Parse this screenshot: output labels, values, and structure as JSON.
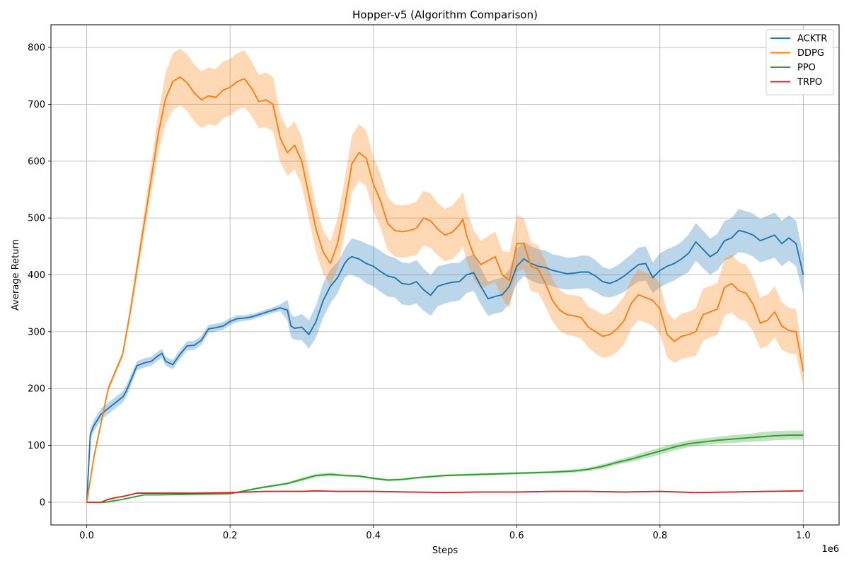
{
  "chart_data": {
    "type": "line",
    "title": "Hopper-v5 (Algorithm Comparison)",
    "xlabel": "Steps",
    "ylabel": "Average Return",
    "x_offset_label": "1e6",
    "xlim": [
      -50000,
      1050000
    ],
    "ylim": [
      -40,
      840
    ],
    "x_ticks": [
      0,
      200000,
      400000,
      600000,
      800000,
      1000000
    ],
    "x_tick_labels": [
      "0.0",
      "0.2",
      "0.4",
      "0.6",
      "0.8",
      "1.0"
    ],
    "y_ticks": [
      0,
      100,
      200,
      300,
      400,
      500,
      600,
      700,
      800
    ],
    "y_tick_labels": [
      "0",
      "100",
      "200",
      "300",
      "400",
      "500",
      "600",
      "700",
      "800"
    ],
    "grid": true,
    "legend_position": "top-right",
    "series": [
      {
        "name": "ACKTR",
        "color": "#1f77b4",
        "x": [
          0,
          5000,
          10000,
          20000,
          30000,
          40000,
          50000,
          55000,
          60000,
          70000,
          80000,
          90000,
          100000,
          105000,
          110000,
          120000,
          130000,
          140000,
          150000,
          160000,
          170000,
          180000,
          190000,
          200000,
          210000,
          220000,
          230000,
          240000,
          250000,
          260000,
          270000,
          280000,
          285000,
          290000,
          300000,
          310000,
          320000,
          330000,
          340000,
          350000,
          360000,
          365000,
          370000,
          380000,
          390000,
          400000,
          410000,
          420000,
          430000,
          440000,
          450000,
          460000,
          470000,
          480000,
          490000,
          500000,
          510000,
          520000,
          530000,
          540000,
          550000,
          560000,
          570000,
          580000,
          590000,
          600000,
          610000,
          620000,
          630000,
          640000,
          650000,
          660000,
          670000,
          680000,
          690000,
          700000,
          710000,
          720000,
          730000,
          740000,
          750000,
          760000,
          770000,
          780000,
          790000,
          800000,
          810000,
          820000,
          830000,
          840000,
          850000,
          860000,
          870000,
          880000,
          890000,
          900000,
          910000,
          920000,
          930000,
          940000,
          950000,
          960000,
          970000,
          980000,
          990000,
          1000000
        ],
        "y": [
          0,
          120,
          135,
          155,
          165,
          175,
          185,
          195,
          210,
          240,
          245,
          248,
          258,
          262,
          248,
          242,
          260,
          275,
          276,
          285,
          305,
          307,
          310,
          318,
          323,
          324,
          326,
          330,
          334,
          338,
          342,
          338,
          310,
          306,
          308,
          295,
          318,
          355,
          380,
          395,
          420,
          428,
          432,
          428,
          420,
          415,
          406,
          398,
          395,
          385,
          383,
          388,
          374,
          364,
          380,
          384,
          387,
          388,
          400,
          404,
          380,
          358,
          362,
          365,
          380,
          415,
          428,
          420,
          415,
          413,
          408,
          405,
          402,
          403,
          405,
          405,
          398,
          388,
          385,
          390,
          398,
          408,
          418,
          420,
          395,
          408,
          415,
          420,
          428,
          438,
          458,
          445,
          432,
          440,
          460,
          465,
          478,
          475,
          470,
          460,
          465,
          470,
          455,
          465,
          455,
          400
        ],
        "band_lower": [
          0,
          110,
          125,
          145,
          155,
          165,
          175,
          185,
          200,
          232,
          237,
          240,
          250,
          254,
          240,
          234,
          252,
          267,
          268,
          277,
          298,
          300,
          303,
          312,
          317,
          319,
          321,
          325,
          329,
          333,
          336,
          320,
          290,
          286,
          285,
          270,
          290,
          325,
          350,
          368,
          395,
          400,
          400,
          395,
          385,
          380,
          370,
          362,
          360,
          348,
          346,
          350,
          337,
          328,
          345,
          350,
          353,
          355,
          368,
          372,
          348,
          328,
          332,
          335,
          350,
          385,
          398,
          390,
          385,
          383,
          380,
          376,
          374,
          375,
          376,
          376,
          370,
          362,
          360,
          364,
          370,
          380,
          388,
          390,
          368,
          378,
          385,
          390,
          398,
          405,
          425,
          412,
          400,
          408,
          425,
          430,
          440,
          438,
          432,
          422,
          426,
          430,
          415,
          425,
          415,
          365
        ],
        "band_upper": [
          0,
          130,
          145,
          165,
          175,
          185,
          195,
          205,
          220,
          248,
          253,
          256,
          266,
          270,
          256,
          250,
          268,
          283,
          284,
          293,
          312,
          314,
          317,
          324,
          329,
          329,
          331,
          335,
          339,
          343,
          348,
          356,
          330,
          326,
          331,
          320,
          346,
          385,
          410,
          422,
          445,
          456,
          464,
          461,
          455,
          450,
          442,
          434,
          430,
          422,
          420,
          426,
          411,
          400,
          415,
          418,
          421,
          421,
          432,
          436,
          412,
          388,
          392,
          395,
          410,
          445,
          458,
          450,
          445,
          443,
          436,
          434,
          430,
          431,
          434,
          434,
          426,
          414,
          410,
          416,
          426,
          436,
          448,
          450,
          422,
          438,
          445,
          450,
          458,
          471,
          491,
          478,
          464,
          472,
          495,
          500,
          516,
          512,
          508,
          498,
          504,
          510,
          495,
          505,
          495,
          435
        ]
      },
      {
        "name": "DDPG",
        "color": "#ff7f0e",
        "x": [
          0,
          10000,
          20000,
          30000,
          40000,
          50000,
          60000,
          70000,
          80000,
          90000,
          100000,
          110000,
          120000,
          130000,
          140000,
          150000,
          160000,
          170000,
          180000,
          190000,
          200000,
          210000,
          220000,
          230000,
          240000,
          250000,
          260000,
          270000,
          280000,
          290000,
          300000,
          310000,
          320000,
          330000,
          340000,
          350000,
          360000,
          370000,
          380000,
          390000,
          400000,
          410000,
          420000,
          430000,
          440000,
          450000,
          460000,
          470000,
          480000,
          490000,
          500000,
          510000,
          520000,
          525000,
          530000,
          540000,
          550000,
          560000,
          570000,
          580000,
          590000,
          600000,
          610000,
          620000,
          630000,
          640000,
          650000,
          660000,
          670000,
          680000,
          690000,
          700000,
          710000,
          720000,
          730000,
          740000,
          750000,
          760000,
          770000,
          780000,
          790000,
          800000,
          810000,
          820000,
          830000,
          840000,
          850000,
          860000,
          870000,
          880000,
          890000,
          900000,
          910000,
          920000,
          930000,
          940000,
          950000,
          960000,
          970000,
          980000,
          990000,
          1000000
        ],
        "y": [
          0,
          80,
          140,
          200,
          230,
          260,
          330,
          410,
          490,
          570,
          650,
          710,
          740,
          748,
          738,
          720,
          708,
          715,
          712,
          725,
          730,
          740,
          745,
          728,
          705,
          708,
          700,
          640,
          615,
          628,
          600,
          540,
          480,
          440,
          420,
          455,
          520,
          595,
          615,
          605,
          560,
          530,
          490,
          478,
          476,
          478,
          482,
          500,
          495,
          480,
          470,
          475,
          488,
          498,
          470,
          435,
          418,
          425,
          432,
          400,
          390,
          455,
          455,
          415,
          410,
          385,
          355,
          338,
          330,
          328,
          325,
          308,
          300,
          292,
          295,
          305,
          320,
          350,
          365,
          360,
          355,
          340,
          295,
          283,
          292,
          295,
          300,
          330,
          335,
          340,
          378,
          385,
          372,
          368,
          348,
          315,
          320,
          335,
          310,
          302,
          300,
          230
        ],
        "band_lower": [
          0,
          75,
          135,
          195,
          225,
          255,
          320,
          395,
          470,
          545,
          615,
          665,
          690,
          698,
          688,
          670,
          658,
          665,
          662,
          675,
          680,
          690,
          695,
          680,
          658,
          660,
          652,
          598,
          574,
          586,
          558,
          498,
          440,
          402,
          382,
          410,
          472,
          545,
          565,
          556,
          512,
          482,
          444,
          432,
          430,
          432,
          435,
          452,
          447,
          434,
          424,
          428,
          440,
          450,
          425,
          392,
          376,
          382,
          388,
          358,
          340,
          405,
          410,
          372,
          368,
          345,
          318,
          302,
          295,
          292,
          288,
          272,
          262,
          254,
          256,
          264,
          278,
          306,
          320,
          316,
          310,
          296,
          255,
          245,
          252,
          255,
          258,
          284,
          290,
          294,
          328,
          334,
          322,
          318,
          300,
          270,
          275,
          290,
          268,
          262,
          260,
          205
        ],
        "band_upper": [
          0,
          85,
          145,
          205,
          235,
          265,
          340,
          425,
          510,
          595,
          685,
          755,
          790,
          798,
          788,
          770,
          758,
          765,
          762,
          775,
          780,
          790,
          795,
          776,
          752,
          756,
          748,
          682,
          656,
          670,
          642,
          582,
          520,
          478,
          458,
          500,
          568,
          645,
          665,
          654,
          608,
          578,
          536,
          524,
          522,
          524,
          529,
          548,
          543,
          526,
          516,
          522,
          536,
          546,
          515,
          478,
          460,
          468,
          476,
          442,
          440,
          505,
          500,
          458,
          452,
          425,
          392,
          374,
          365,
          364,
          362,
          344,
          338,
          330,
          334,
          346,
          362,
          394,
          410,
          404,
          400,
          384,
          335,
          321,
          332,
          335,
          342,
          376,
          380,
          386,
          428,
          436,
          422,
          418,
          396,
          360,
          365,
          380,
          352,
          342,
          340,
          255
        ]
      },
      {
        "name": "PPO",
        "color": "#2ca02c",
        "x": [
          0,
          25000,
          50000,
          80000,
          100000,
          150000,
          200000,
          240000,
          260000,
          280000,
          300000,
          320000,
          340000,
          360000,
          380000,
          400000,
          420000,
          440000,
          460000,
          480000,
          500000,
          550000,
          600000,
          650000,
          680000,
          700000,
          720000,
          740000,
          760000,
          780000,
          800000,
          820000,
          840000,
          860000,
          880000,
          900000,
          920000,
          940000,
          960000,
          980000,
          1000000
        ],
        "y": [
          0,
          0,
          5,
          13,
          13,
          14,
          15,
          25,
          29,
          33,
          40,
          47,
          49,
          47,
          46,
          42,
          39,
          40,
          43,
          45,
          47,
          49,
          51,
          53,
          55,
          58,
          63,
          70,
          76,
          83,
          90,
          97,
          103,
          106,
          109,
          111,
          113,
          115,
          117,
          118,
          118
        ],
        "band_lower": [
          0,
          0,
          4,
          12,
          12,
          13,
          14,
          23,
          27,
          31,
          37,
          44,
          46,
          45,
          44,
          40,
          37,
          38,
          41,
          43,
          45,
          47,
          49,
          51,
          52,
          55,
          59,
          66,
          71,
          77,
          84,
          91,
          97,
          100,
          103,
          104,
          106,
          107,
          109,
          110,
          110
        ],
        "band_upper": [
          0,
          0,
          6,
          14,
          14,
          15,
          16,
          27,
          31,
          35,
          43,
          50,
          52,
          49,
          48,
          44,
          41,
          42,
          45,
          47,
          49,
          51,
          53,
          55,
          58,
          61,
          67,
          74,
          81,
          89,
          96,
          103,
          109,
          112,
          115,
          118,
          120,
          123,
          125,
          126,
          126
        ]
      },
      {
        "name": "TRPO",
        "color": "#d62728",
        "x": [
          0,
          20000,
          30000,
          40000,
          50000,
          60000,
          70000,
          100000,
          150000,
          200000,
          250000,
          300000,
          320000,
          350000,
          400000,
          450000,
          500000,
          550000,
          600000,
          650000,
          700000,
          750000,
          800000,
          850000,
          900000,
          950000,
          1000000
        ],
        "y": [
          0,
          0,
          5,
          8,
          10,
          13,
          16,
          16,
          16,
          17,
          19,
          19,
          20,
          19,
          19,
          18,
          17,
          18,
          18,
          19,
          19,
          18,
          19,
          17,
          18,
          19,
          20
        ],
        "band_lower": [
          0,
          0,
          4,
          7,
          9,
          12,
          15,
          15,
          15,
          16,
          18,
          18,
          19,
          18,
          18,
          17,
          16,
          17,
          17,
          18,
          18,
          17,
          18,
          16,
          17,
          18,
          19
        ],
        "band_upper": [
          0,
          0,
          6,
          9,
          11,
          14,
          17,
          17,
          17,
          18,
          20,
          20,
          21,
          20,
          20,
          19,
          18,
          19,
          19,
          20,
          20,
          19,
          20,
          18,
          19,
          20,
          21
        ]
      }
    ]
  }
}
